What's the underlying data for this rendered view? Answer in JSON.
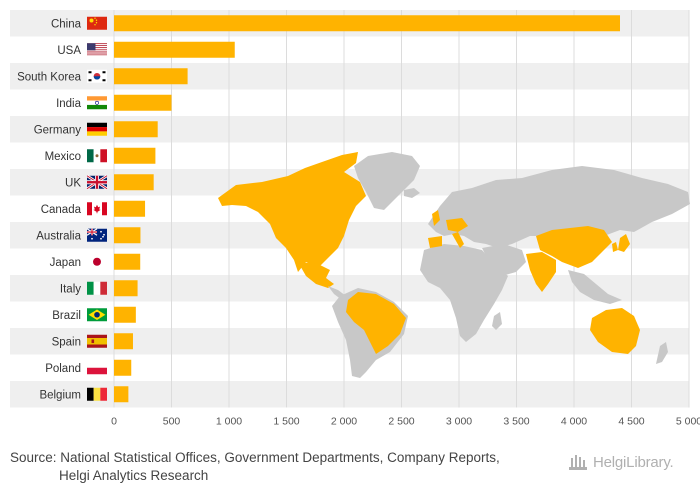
{
  "chart_data": {
    "type": "bar",
    "orientation": "horizontal",
    "title": "",
    "xlabel": "",
    "ylabel": "",
    "categories": [
      "China",
      "USA",
      "South Korea",
      "India",
      "Germany",
      "Mexico",
      "UK",
      "Canada",
      "Australia",
      "Japan",
      "Italy",
      "Brazil",
      "Spain",
      "Poland",
      "Belgium"
    ],
    "values": [
      4400,
      1050,
      640,
      500,
      380,
      360,
      345,
      270,
      230,
      228,
      205,
      190,
      165,
      150,
      125
    ],
    "xlim": [
      0,
      5000
    ],
    "xticks": [
      0,
      500,
      1000,
      1500,
      2000,
      2500,
      3000,
      3500,
      4000,
      4500,
      5000
    ],
    "xtick_labels": [
      "0",
      "500",
      "1 000",
      "1 500",
      "2 000",
      "2 500",
      "3 000",
      "3 500",
      "4 000",
      "4 500",
      "5 000"
    ],
    "grid": "vertical",
    "background_map": "world-map-highlighting-listed-countries"
  },
  "footer": {
    "source_line1": "Source: National Statistical Offices, Government Departments, Company Reports,",
    "source_line2": "Helgi Analytics Research",
    "logo_text": "HelgiLibrary."
  },
  "colors": {
    "bar": "#ffb300",
    "map_highlight": "#ffb300",
    "map_base": "#c8c8c8",
    "band": "#efefef",
    "grid": "#dcdcdc",
    "text": "#333333"
  }
}
